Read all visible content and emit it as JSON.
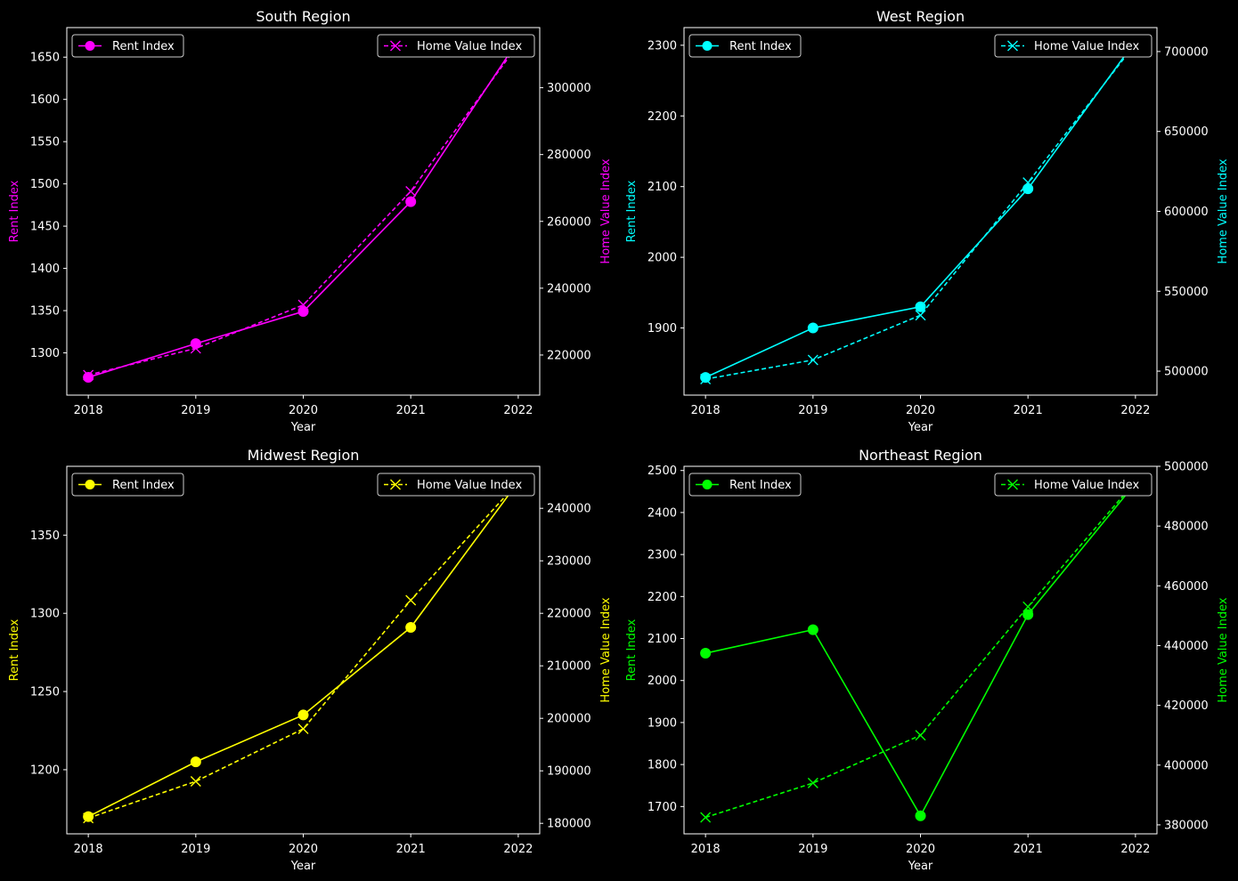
{
  "chart_data": [
    {
      "type": "line",
      "title": "South Region",
      "color": "#ff00ff",
      "xlabel": "Year",
      "ylabel_left": "Rent Index",
      "ylabel_right": "Home Value Index",
      "x": [
        2018,
        2019,
        2020,
        2021,
        2022
      ],
      "xticks": [
        "2018",
        "2019",
        "2020",
        "2021",
        "2022"
      ],
      "ylim_left": [
        1250,
        1685
      ],
      "ylim_right": [
        208000,
        318000
      ],
      "yticks_left": [
        1300,
        1350,
        1400,
        1450,
        1500,
        1550,
        1600,
        1650
      ],
      "yticks_right": [
        220000,
        240000,
        260000,
        280000,
        300000
      ],
      "ytick_labels_left": [
        "1300",
        "1350",
        "1400",
        "1450",
        "1500",
        "1550",
        "1600",
        "1650"
      ],
      "ytick_labels_right": [
        "220000",
        "240000",
        "260000",
        "280000",
        "300000"
      ],
      "legend_left": "Rent Index",
      "legend_right": "Home Value Index",
      "series": [
        {
          "name": "Rent Index",
          "axis": "left",
          "marker": "circle",
          "linestyle": "solid",
          "values": [
            1271,
            1311,
            1349,
            1479,
            1670
          ]
        },
        {
          "name": "Home Value Index",
          "axis": "right",
          "marker": "x",
          "linestyle": "dashed",
          "values": [
            214000,
            222000,
            235000,
            269000,
            313000
          ]
        }
      ]
    },
    {
      "type": "line",
      "title": "West Region",
      "color": "#00ffff",
      "xlabel": "Year",
      "ylabel_left": "Rent Index",
      "ylabel_right": "Home Value Index",
      "x": [
        2018,
        2019,
        2020,
        2021,
        2022
      ],
      "xticks": [
        "2018",
        "2019",
        "2020",
        "2021",
        "2022"
      ],
      "ylim_left": [
        1805,
        2325
      ],
      "ylim_right": [
        485000,
        715000
      ],
      "yticks_left": [
        1900,
        2000,
        2100,
        2200,
        2300
      ],
      "yticks_right": [
        500000,
        550000,
        600000,
        650000,
        700000
      ],
      "ytick_labels_left": [
        "1900",
        "2000",
        "2100",
        "2200",
        "2300"
      ],
      "ytick_labels_right": [
        "500000",
        "550000",
        "600000",
        "650000",
        "700000"
      ],
      "legend_left": "Rent Index",
      "legend_right": "Home Value Index",
      "series": [
        {
          "name": "Rent Index",
          "axis": "left",
          "marker": "circle",
          "linestyle": "solid",
          "values": [
            1830,
            1900,
            1930,
            2097,
            2306
          ]
        },
        {
          "name": "Home Value Index",
          "axis": "right",
          "marker": "x",
          "linestyle": "dashed",
          "values": [
            495000,
            507000,
            535000,
            618000,
            705000
          ]
        }
      ]
    },
    {
      "type": "line",
      "title": "Midwest Region",
      "color": "#ffff00",
      "xlabel": "Year",
      "ylabel_left": "Rent Index",
      "ylabel_right": "Home Value Index",
      "x": [
        2018,
        2019,
        2020,
        2021,
        2022
      ],
      "xticks": [
        "2018",
        "2019",
        "2020",
        "2021",
        "2022"
      ],
      "ylim_left": [
        1159,
        1394
      ],
      "ylim_right": [
        178000,
        248000
      ],
      "yticks_left": [
        1200,
        1250,
        1300,
        1350
      ],
      "yticks_right": [
        180000,
        190000,
        200000,
        210000,
        220000,
        230000,
        240000
      ],
      "ytick_labels_left": [
        "1200",
        "1250",
        "1300",
        "1350"
      ],
      "ytick_labels_right": [
        "180000",
        "190000",
        "200000",
        "210000",
        "220000",
        "230000",
        "240000"
      ],
      "legend_left": "Rent Index",
      "legend_right": "Home Value Index",
      "series": [
        {
          "name": "Rent Index",
          "axis": "left",
          "marker": "circle",
          "linestyle": "solid",
          "values": [
            1170,
            1205,
            1235,
            1291,
            1384
          ]
        },
        {
          "name": "Home Value Index",
          "axis": "right",
          "marker": "x",
          "linestyle": "dashed",
          "values": [
            181000,
            188000,
            198000,
            222500,
            245000
          ]
        }
      ]
    },
    {
      "type": "line",
      "title": "Northeast Region",
      "color": "#00ff00",
      "xlabel": "Year",
      "ylabel_left": "Rent Index",
      "ylabel_right": "Home Value Index",
      "x": [
        2018,
        2019,
        2020,
        2021,
        2022
      ],
      "xticks": [
        "2018",
        "2019",
        "2020",
        "2021",
        "2022"
      ],
      "ylim_left": [
        1635,
        2510
      ],
      "ylim_right": [
        377000,
        500000
      ],
      "yticks_left": [
        1700,
        1800,
        1900,
        2000,
        2100,
        2200,
        2300,
        2400,
        2500
      ],
      "yticks_right": [
        380000,
        400000,
        420000,
        440000,
        460000,
        480000,
        500000
      ],
      "ytick_labels_left": [
        "1700",
        "1800",
        "1900",
        "2000",
        "2100",
        "2200",
        "2300",
        "2400",
        "2500"
      ],
      "ytick_labels_right": [
        "380000",
        "400000",
        "420000",
        "440000",
        "460000",
        "480000",
        "500000"
      ],
      "legend_left": "Rent Index",
      "legend_right": "Home Value Index",
      "series": [
        {
          "name": "Rent Index",
          "axis": "left",
          "marker": "circle",
          "linestyle": "solid",
          "values": [
            2065,
            2121,
            1678,
            2157,
            2470
          ]
        },
        {
          "name": "Home Value Index",
          "axis": "right",
          "marker": "x",
          "linestyle": "dashed",
          "values": [
            382500,
            394000,
            410000,
            453000,
            495000
          ]
        }
      ]
    }
  ]
}
